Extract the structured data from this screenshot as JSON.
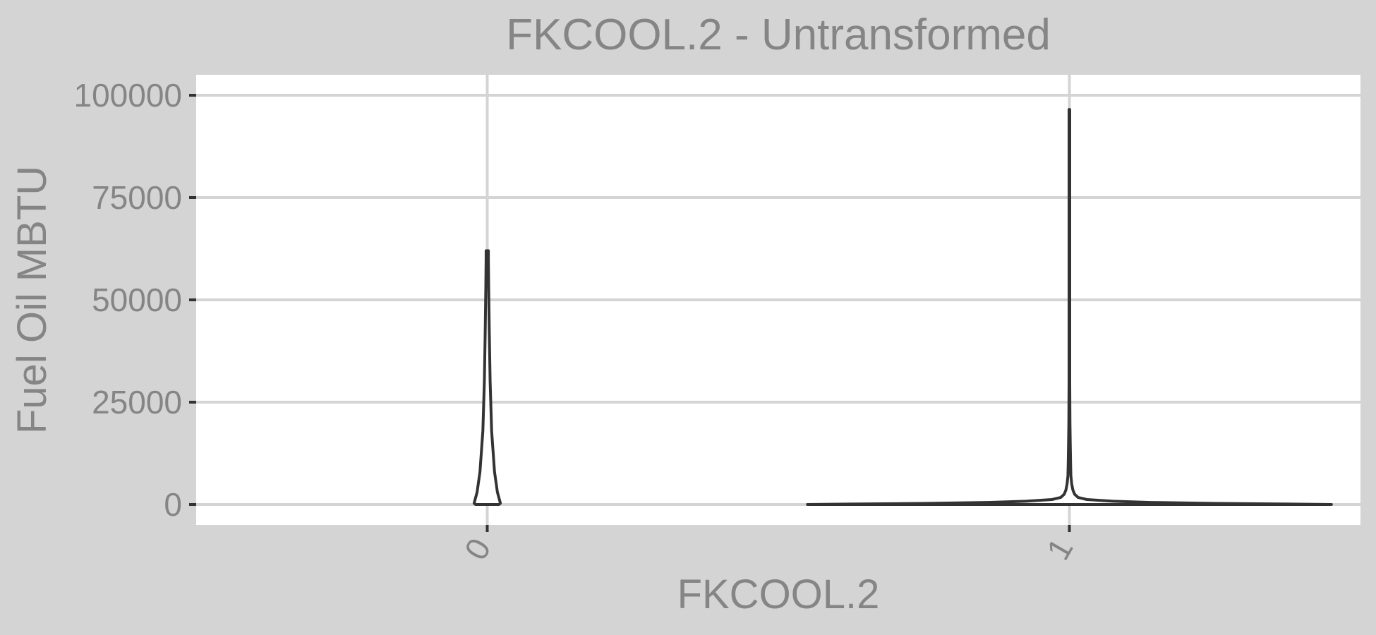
{
  "chart_data": {
    "type": "violin",
    "title": "FKCOOL.2 - Untransformed",
    "xlabel": "FKCOOL.2",
    "ylabel": "Fuel Oil MBTU",
    "categories": [
      "0",
      "1"
    ],
    "ylim": [
      -5000,
      105000
    ],
    "yticks": [
      0,
      25000,
      50000,
      75000,
      100000
    ],
    "ytick_labels": [
      "0",
      "25000",
      "50000",
      "75000",
      "100000"
    ],
    "grid": true,
    "legend": "none",
    "colors": {
      "outer_background": "#d4d4d4",
      "panel_background": "#ffffff",
      "grid": "#d4d4d4",
      "violin_stroke": "#333333",
      "axis_text": "#858585"
    },
    "violins": [
      {
        "category": "0",
        "y_range": [
          0,
          62000
        ],
        "profile": [
          {
            "y": 0,
            "density": 0.04
          },
          {
            "y": 300,
            "density": 0.045
          },
          {
            "y": 900,
            "density": 0.043
          },
          {
            "y": 3000,
            "density": 0.035
          },
          {
            "y": 8000,
            "density": 0.025
          },
          {
            "y": 18000,
            "density": 0.015
          },
          {
            "y": 30000,
            "density": 0.01
          },
          {
            "y": 42000,
            "density": 0.007
          },
          {
            "y": 52000,
            "density": 0.005
          },
          {
            "y": 60000,
            "density": 0.004
          },
          {
            "y": 62000,
            "density": 0.004
          }
        ]
      },
      {
        "category": "1",
        "y_range": [
          0,
          96500
        ],
        "profile": [
          {
            "y": 0,
            "density": 0.9
          },
          {
            "y": 100,
            "density": 0.75
          },
          {
            "y": 250,
            "density": 0.5
          },
          {
            "y": 500,
            "density": 0.28
          },
          {
            "y": 800,
            "density": 0.15
          },
          {
            "y": 1200,
            "density": 0.06
          },
          {
            "y": 1700,
            "density": 0.03
          },
          {
            "y": 2500,
            "density": 0.018
          },
          {
            "y": 3500,
            "density": 0.012
          },
          {
            "y": 5000,
            "density": 0.008
          },
          {
            "y": 7000,
            "density": 0.005
          },
          {
            "y": 10000,
            "density": 0.004
          },
          {
            "y": 15000,
            "density": 0.003
          },
          {
            "y": 20000,
            "density": 0.002
          },
          {
            "y": 30000,
            "density": 0.0012
          },
          {
            "y": 50000,
            "density": 0.0012
          },
          {
            "y": 70000,
            "density": 0.0012
          },
          {
            "y": 96500,
            "density": 0.0012
          }
        ]
      }
    ]
  }
}
